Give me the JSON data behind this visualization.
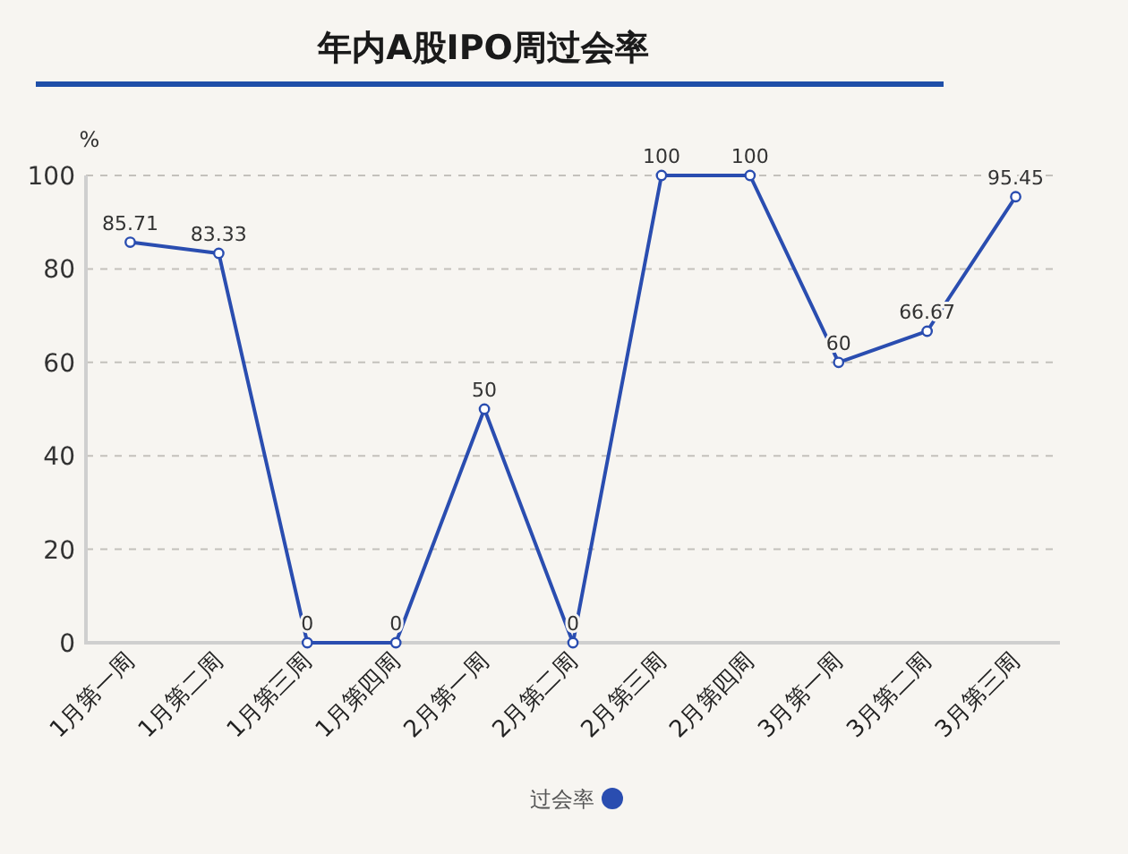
{
  "chart_data": {
    "type": "line",
    "title": "年内A股IPO周过会率",
    "ylabel": "%",
    "categories": [
      "1月第一周",
      "1月第二周",
      "1月第三周",
      "1月第四周",
      "2月第一周",
      "2月第二周",
      "2月第三周",
      "2月第四周",
      "3月第一周",
      "3月第二周",
      "3月第三周"
    ],
    "series": [
      {
        "name": "过会率",
        "color": "#2a4db0",
        "values": [
          85.71,
          83.33,
          0,
          0,
          50,
          0,
          100,
          100,
          60,
          66.67,
          95.45
        ]
      }
    ],
    "ylim": [
      0,
      100
    ],
    "yticks": [
      0,
      20,
      40,
      60,
      80,
      100
    ],
    "grid": "y",
    "legend": "bottom",
    "marker": "circle",
    "line_style": "solid",
    "data_labels": true
  }
}
